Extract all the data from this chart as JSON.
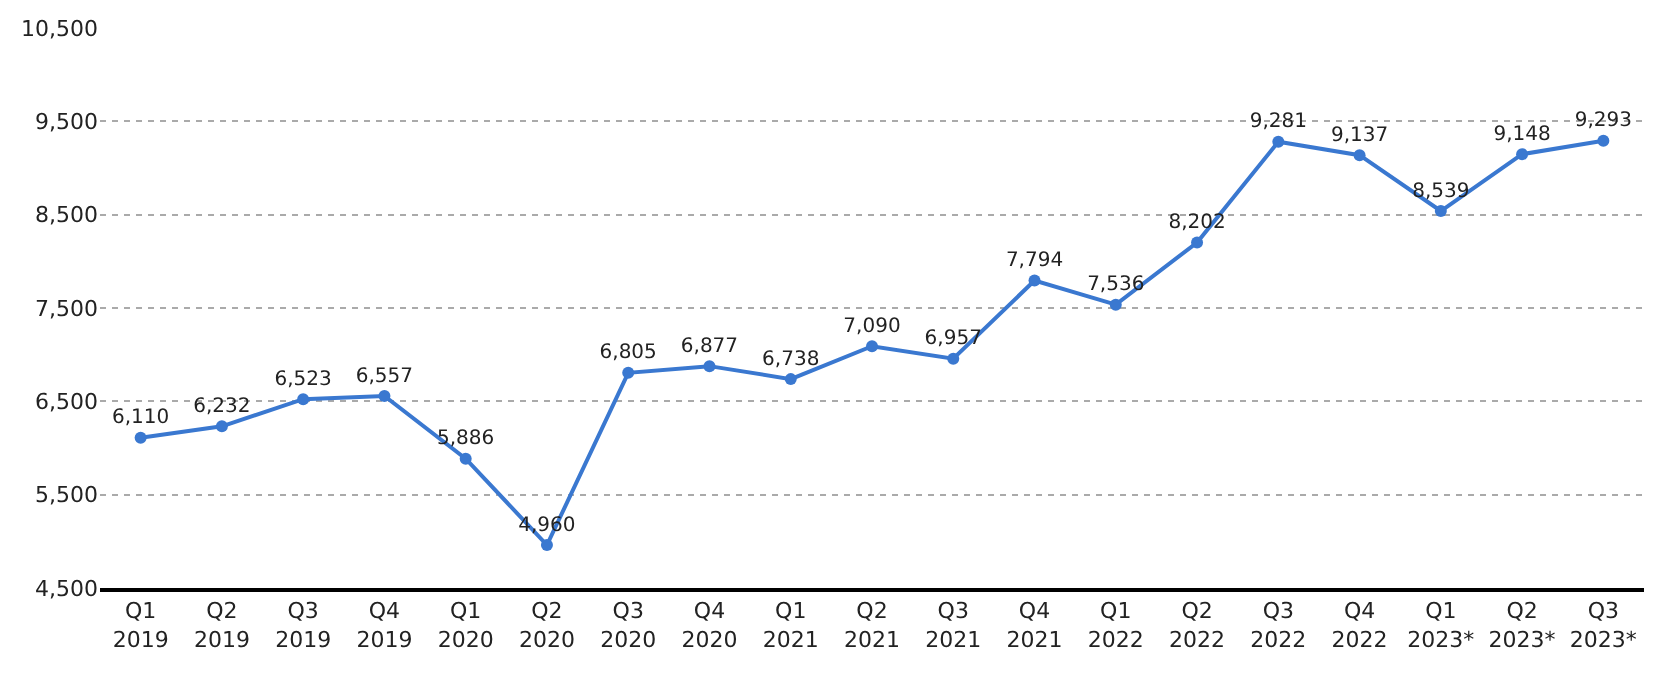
{
  "chart_data": {
    "type": "line",
    "categories": [
      "Q1\n2019",
      "Q2\n2019",
      "Q3\n2019",
      "Q4\n2019",
      "Q1\n2020",
      "Q2\n2020",
      "Q3\n2020",
      "Q4\n2020",
      "Q1\n2021",
      "Q2\n2021",
      "Q3\n2021",
      "Q4\n2021",
      "Q1\n2022",
      "Q2\n2022",
      "Q3\n2022",
      "Q4\n2022",
      "Q1\n2023*",
      "Q2\n2023*",
      "Q3\n2023*"
    ],
    "series": [
      {
        "color": "#3a78d0",
        "values": [
          6110,
          6232,
          6523,
          6557,
          5886,
          4960,
          6805,
          6877,
          6738,
          7090,
          6957,
          7794,
          7536,
          8202,
          9281,
          9137,
          8539,
          9148,
          9293
        ],
        "value_labels": [
          "6,110",
          "6,232",
          "6,523",
          "6,557",
          "5,886",
          "4,960",
          "6,805",
          "6,877",
          "6,738",
          "7,090",
          "6,957",
          "7,794",
          "7,536",
          "8,202",
          "9,281",
          "9,137",
          "8,539",
          "9,148",
          "9,293"
        ]
      }
    ],
    "ylim": [
      4500,
      10500
    ],
    "yticks": [
      {
        "value": 4500,
        "label": "4,500"
      },
      {
        "value": 5500,
        "label": "5,500"
      },
      {
        "value": 6500,
        "label": "6,500"
      },
      {
        "value": 7500,
        "label": "7,500"
      },
      {
        "value": 8500,
        "label": "8,500"
      },
      {
        "value": 9500,
        "label": "9,500"
      },
      {
        "value": 10500,
        "label": "10,500"
      }
    ],
    "grid": "y",
    "marker": "circle",
    "line_style": "solid"
  }
}
